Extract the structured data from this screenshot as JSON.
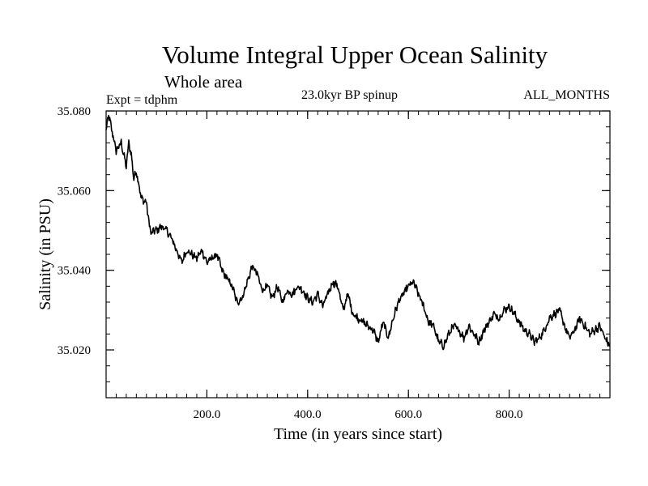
{
  "chart_data": {
    "type": "line",
    "title": "Volume Integral Upper Ocean Salinity",
    "subtitle": "Whole area",
    "expt_label": "Expt = tdphm",
    "run_label": "23.0kyr BP spinup",
    "months_label": "ALL_MONTHS",
    "xlabel": "Time (in years since start)",
    "ylabel": "Salinity (in PSU)",
    "xlim": [
      0,
      1000
    ],
    "ylim": [
      35.008,
      35.08
    ],
    "x_ticks": [
      200,
      400,
      600,
      800
    ],
    "x_tick_labels": [
      "200.0",
      "400.0",
      "600.0",
      "800.0"
    ],
    "x_minor_step": 20,
    "y_ticks": [
      35.02,
      35.04,
      35.06,
      35.08
    ],
    "y_tick_labels": [
      "35.020",
      "35.040",
      "35.060",
      "35.080"
    ],
    "y_minor_step": 0.004,
    "series": [
      {
        "name": "salinity",
        "color": "#000000",
        "x": [
          0,
          5,
          10,
          20,
          30,
          40,
          45,
          50,
          55,
          60,
          70,
          80,
          85,
          90,
          95,
          100,
          110,
          120,
          130,
          140,
          150,
          160,
          170,
          180,
          190,
          200,
          210,
          220,
          230,
          240,
          250,
          260,
          270,
          280,
          290,
          300,
          310,
          320,
          330,
          340,
          350,
          360,
          370,
          380,
          390,
          400,
          410,
          420,
          430,
          440,
          450,
          460,
          470,
          480,
          490,
          500,
          510,
          520,
          530,
          540,
          550,
          560,
          570,
          580,
          590,
          600,
          610,
          620,
          630,
          640,
          650,
          660,
          670,
          680,
          690,
          700,
          710,
          720,
          730,
          740,
          750,
          760,
          770,
          780,
          790,
          800,
          810,
          820,
          830,
          840,
          850,
          860,
          870,
          880,
          890,
          900,
          910,
          920,
          930,
          940,
          950,
          960,
          970,
          980,
          990,
          1000
        ],
        "values": [
          35.075,
          35.079,
          35.076,
          35.07,
          35.072,
          35.066,
          35.072,
          35.069,
          35.063,
          35.065,
          35.058,
          35.057,
          35.052,
          35.049,
          35.05,
          35.05,
          35.051,
          35.05,
          35.048,
          35.045,
          35.042,
          35.045,
          35.044,
          35.043,
          35.045,
          35.042,
          35.043,
          35.044,
          35.04,
          35.038,
          35.036,
          35.032,
          35.033,
          35.037,
          35.041,
          35.039,
          35.035,
          35.036,
          35.033,
          35.036,
          35.032,
          35.035,
          35.034,
          35.036,
          35.035,
          35.033,
          35.032,
          35.034,
          35.031,
          35.034,
          35.037,
          35.036,
          35.03,
          35.034,
          35.029,
          35.028,
          35.027,
          35.026,
          35.025,
          35.022,
          35.027,
          35.023,
          35.028,
          35.032,
          35.034,
          35.036,
          35.037,
          35.034,
          35.031,
          35.027,
          35.026,
          35.022,
          35.021,
          35.024,
          35.026,
          35.025,
          35.023,
          35.026,
          35.024,
          35.022,
          35.025,
          35.027,
          35.029,
          35.028,
          35.03,
          35.031,
          35.029,
          35.027,
          35.025,
          35.024,
          35.022,
          35.023,
          35.025,
          35.028,
          35.029,
          35.03,
          35.026,
          35.023,
          35.025,
          35.028,
          35.026,
          35.024,
          35.025,
          35.026,
          35.023,
          35.021
        ]
      }
    ]
  }
}
